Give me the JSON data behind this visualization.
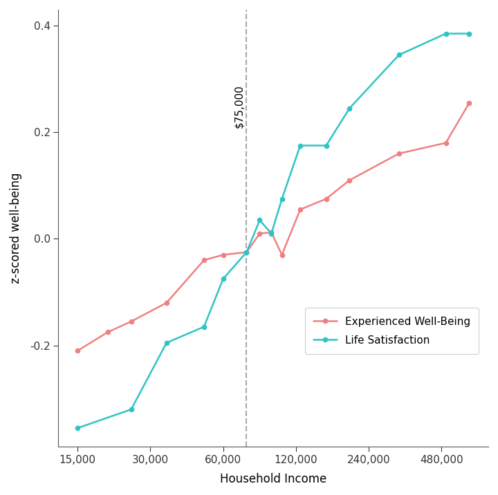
{
  "xlabel": "Household Income",
  "ylabel": "z-scored well-being",
  "vline_x": 75000,
  "vline_label": "$75,000",
  "experienced_x": [
    15000,
    20000,
    25000,
    35000,
    50000,
    60000,
    75000,
    85000,
    95000,
    105000,
    125000,
    160000,
    200000,
    320000,
    500000,
    625000
  ],
  "experienced_y": [
    -0.21,
    -0.175,
    -0.155,
    -0.12,
    -0.04,
    -0.03,
    -0.025,
    0.01,
    0.012,
    -0.03,
    0.055,
    0.075,
    0.11,
    0.16,
    0.18,
    0.255
  ],
  "satisfaction_x": [
    15000,
    25000,
    35000,
    50000,
    60000,
    75000,
    85000,
    95000,
    105000,
    125000,
    160000,
    200000,
    320000,
    500000,
    625000
  ],
  "satisfaction_y": [
    -0.355,
    -0.32,
    -0.195,
    -0.165,
    -0.075,
    -0.025,
    0.035,
    0.01,
    0.075,
    0.175,
    0.175,
    0.245,
    0.345,
    0.385,
    0.385
  ],
  "ewb_color": "#F08080",
  "ls_color": "#2EC4C4",
  "background_color": "#ffffff",
  "ylim": [
    -0.39,
    0.43
  ],
  "yticks": [
    -0.2,
    0.0,
    0.2,
    0.4
  ],
  "xtick_labels": [
    "15,000",
    "30,000",
    "60,000",
    "120,000",
    "240,000",
    "480,000"
  ],
  "xtick_values": [
    15000,
    30000,
    60000,
    120000,
    240000,
    480000
  ],
  "legend_ewb": "Experienced Well-Being",
  "legend_ls": "Life Satisfaction"
}
